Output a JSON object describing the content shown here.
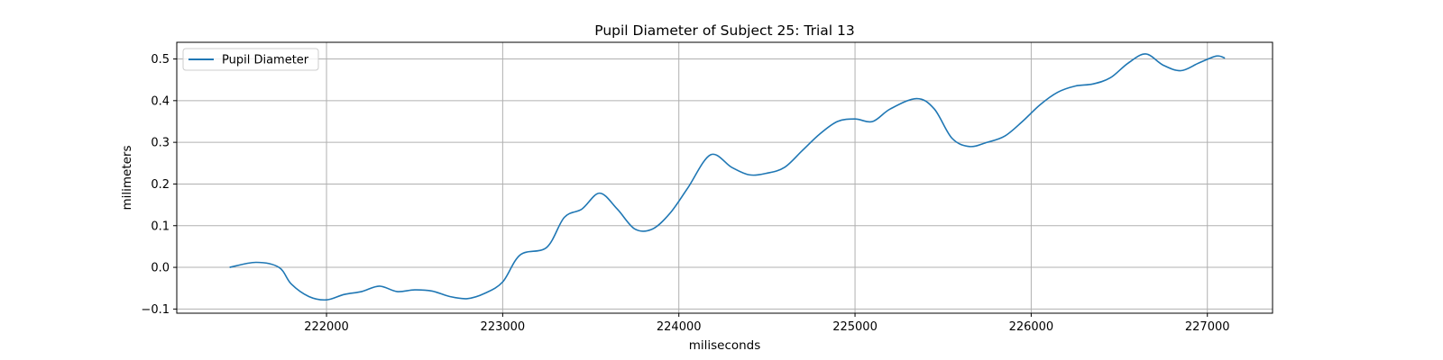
{
  "chart_data": {
    "type": "line",
    "title": "Pupil Diameter of Subject 25: Trial 13",
    "xlabel": "miliseconds",
    "ylabel": "milimeters",
    "xlim": [
      221150,
      227370
    ],
    "ylim": [
      -0.11,
      0.54
    ],
    "xticks": [
      222000,
      223000,
      224000,
      225000,
      226000,
      227000
    ],
    "yticks": [
      -0.1,
      0.0,
      0.1,
      0.2,
      0.3,
      0.4,
      0.5
    ],
    "xtick_labels": [
      "222000",
      "223000",
      "224000",
      "225000",
      "226000",
      "227000"
    ],
    "ytick_labels": [
      "−0.1",
      "0.0",
      "0.1",
      "0.2",
      "0.3",
      "0.4",
      "0.5"
    ],
    "grid": true,
    "legend": {
      "position": "top-left",
      "entries": [
        "Pupil Diameter"
      ]
    },
    "series": [
      {
        "name": "Pupil Diameter",
        "color": "#1f77b4",
        "x": [
          221450,
          221600,
          221730,
          221800,
          221900,
          222000,
          222100,
          222200,
          222300,
          222400,
          222500,
          222600,
          222700,
          222800,
          222900,
          223000,
          223100,
          223250,
          223350,
          223450,
          223550,
          223650,
          223750,
          223850,
          223950,
          224050,
          224180,
          224300,
          224400,
          224500,
          224600,
          224700,
          224800,
          224900,
          225000,
          225100,
          225200,
          225350,
          225450,
          225550,
          225650,
          225750,
          225850,
          225950,
          226050,
          226150,
          226250,
          226350,
          226450,
          226550,
          226650,
          226750,
          226850,
          226950,
          227050,
          227100
        ],
        "values": [
          0.0,
          0.012,
          0.0,
          -0.04,
          -0.07,
          -0.078,
          -0.065,
          -0.058,
          -0.045,
          -0.058,
          -0.054,
          -0.057,
          -0.07,
          -0.075,
          -0.062,
          -0.035,
          0.03,
          0.048,
          0.12,
          0.14,
          0.178,
          0.14,
          0.092,
          0.092,
          0.13,
          0.19,
          0.27,
          0.24,
          0.222,
          0.226,
          0.24,
          0.28,
          0.32,
          0.35,
          0.356,
          0.35,
          0.38,
          0.405,
          0.38,
          0.31,
          0.29,
          0.3,
          0.315,
          0.35,
          0.39,
          0.42,
          0.435,
          0.44,
          0.455,
          0.49,
          0.512,
          0.485,
          0.472,
          0.49,
          0.507,
          0.502
        ]
      }
    ]
  }
}
